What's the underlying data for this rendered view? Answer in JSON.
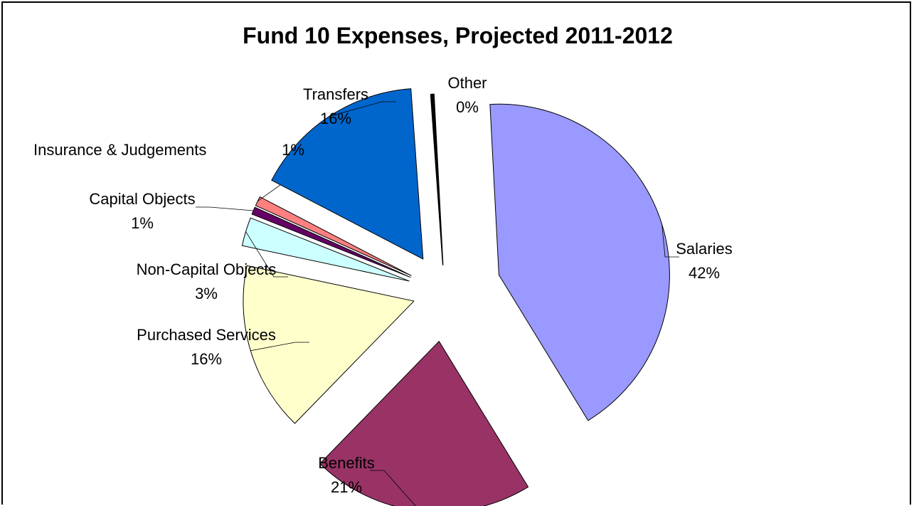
{
  "chart_data": {
    "type": "pie",
    "title": "Fund 10 Expenses, Projected 2011-2012",
    "slices": [
      {
        "name": "Salaries",
        "percent_label": "42%",
        "value": 42,
        "color": "#9999FF"
      },
      {
        "name": "Benefits",
        "percent_label": "21%",
        "value": 21,
        "color": "#993366"
      },
      {
        "name": "Purchased Services",
        "percent_label": "16%",
        "value": 16,
        "color": "#FFFFCC"
      },
      {
        "name": "Non-Capital Objects",
        "percent_label": "3%",
        "value": 2.7,
        "color": "#CCFFFF"
      },
      {
        "name": "Capital Objects",
        "percent_label": "1%",
        "value": 0.7,
        "color": "#660066"
      },
      {
        "name": "Insurance & Judgements",
        "percent_label": "1%",
        "value": 0.9,
        "color": "#FF8080"
      },
      {
        "name": "Transfers",
        "percent_label": "16%",
        "value": 16.2,
        "color": "#0066CC"
      },
      {
        "name": "Other",
        "percent_label": "0%",
        "value": 0.3,
        "color": "#000000"
      }
    ],
    "legend": "none",
    "data_labels": "outside with leader lines"
  }
}
